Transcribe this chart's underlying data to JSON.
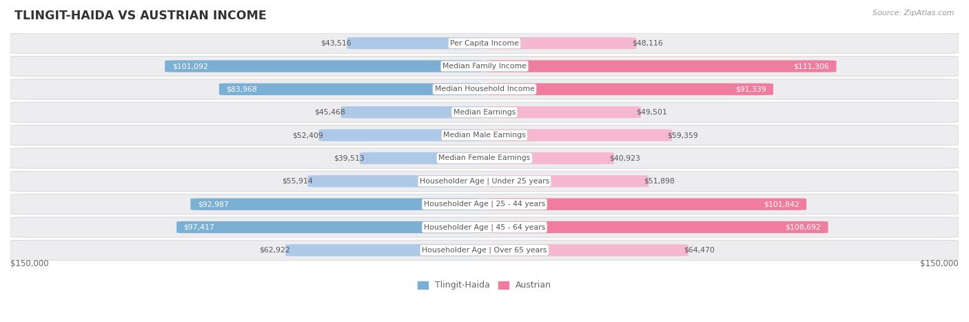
{
  "title": "TLINGIT-HAIDA VS AUSTRIAN INCOME",
  "source": "Source: ZipAtlas.com",
  "categories": [
    "Per Capita Income",
    "Median Family Income",
    "Median Household Income",
    "Median Earnings",
    "Median Male Earnings",
    "Median Female Earnings",
    "Householder Age | Under 25 years",
    "Householder Age | 25 - 44 years",
    "Householder Age | 45 - 64 years",
    "Householder Age | Over 65 years"
  ],
  "tlingit_values": [
    43516,
    101092,
    83968,
    45468,
    52409,
    39513,
    55914,
    92987,
    97417,
    62922
  ],
  "austrian_values": [
    48116,
    111306,
    91339,
    49501,
    59359,
    40923,
    51898,
    101842,
    108692,
    64470
  ],
  "tlingit_labels": [
    "$43,516",
    "$101,092",
    "$83,968",
    "$45,468",
    "$52,409",
    "$39,513",
    "$55,914",
    "$92,987",
    "$97,417",
    "$62,922"
  ],
  "austrian_labels": [
    "$48,116",
    "$111,306",
    "$91,339",
    "$49,501",
    "$59,359",
    "$40,923",
    "$51,898",
    "$101,842",
    "$108,692",
    "$64,470"
  ],
  "tlingit_inside": [
    false,
    true,
    true,
    false,
    false,
    false,
    false,
    true,
    true,
    false
  ],
  "austrian_inside": [
    false,
    true,
    true,
    false,
    false,
    false,
    false,
    true,
    true,
    false
  ],
  "max_val": 150000,
  "tlingit_color": "#7bafd4",
  "austrian_color": "#f07ca0",
  "tlingit_color_light": "#aec9e8",
  "austrian_color_light": "#f5b8cf",
  "tlingit_label_color_dark": "#555555",
  "tlingit_label_color_white": "#ffffff",
  "austrian_label_color_dark": "#555555",
  "austrian_label_color_white": "#ffffff",
  "bar_height": 0.52,
  "row_bg_color": "#ededf0",
  "background_color": "#ffffff",
  "center_label_bg": "#ffffff",
  "center_label_color": "#555555",
  "axis_label_color": "#666666",
  "title_color": "#333333",
  "source_color": "#999999",
  "legend_tlingit": "Tlingit-Haida",
  "legend_austrian": "Austrian",
  "bottom_label_left": "$150,000",
  "bottom_label_right": "$150,000"
}
